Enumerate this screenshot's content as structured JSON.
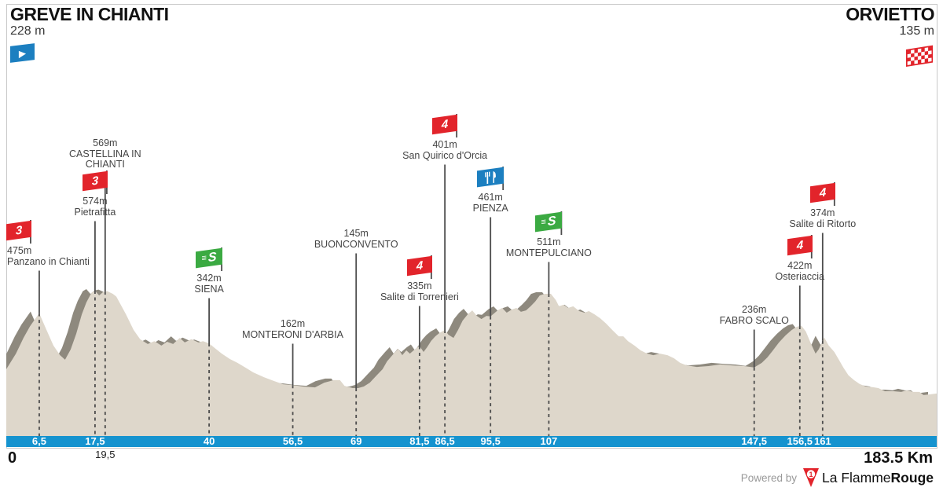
{
  "header": {
    "start_name": "GREVE IN CHIANTI",
    "start_elevation": "228 m",
    "finish_name": "ORVIETTO",
    "finish_elevation": "135 m"
  },
  "footer": {
    "km_zero_label": "0",
    "total_distance_label": "183.5 Km",
    "powered_by": "Powered by",
    "brand_regular": "La Flamme",
    "brand_bold": "Rouge"
  },
  "colors": {
    "profile_fill": "#ded7cb",
    "profile_shadow": "#8e897e",
    "axis_bar": "#1593cf",
    "flag_blue": "#1c7fc0",
    "flag_red": "#e2242b",
    "flag_green": "#3baa42",
    "marker_line": "#4d4d4d",
    "border": "#c9c9c9"
  },
  "chart_data": {
    "type": "area",
    "title": "Stage profile: Greve in Chianti to Orvieto",
    "x_unit": "km",
    "y_unit": "m",
    "x_range": [
      0,
      183.5
    ],
    "y_range": [
      100,
      600
    ],
    "start": {
      "name": "GREVE IN CHIANTI",
      "elevation_m": 228
    },
    "finish": {
      "name": "ORVIETTO",
      "elevation_m": 135
    },
    "profile": [
      [
        0,
        228
      ],
      [
        1.9,
        297
      ],
      [
        3.4,
        366
      ],
      [
        4.7,
        418
      ],
      [
        6.5,
        475
      ],
      [
        7.8,
        408
      ],
      [
        9.3,
        332
      ],
      [
        10.6,
        290
      ],
      [
        11.6,
        270
      ],
      [
        12.7,
        315
      ],
      [
        13.8,
        384
      ],
      [
        14.9,
        470
      ],
      [
        15.8,
        522
      ],
      [
        16.8,
        565
      ],
      [
        17.5,
        574
      ],
      [
        18.3,
        553
      ],
      [
        19.1,
        568
      ],
      [
        19.9,
        572
      ],
      [
        21,
        560
      ],
      [
        21.7,
        548
      ],
      [
        23.6,
        470
      ],
      [
        25.1,
        401
      ],
      [
        26.4,
        360
      ],
      [
        27.9,
        339
      ],
      [
        29.2,
        352
      ],
      [
        30.6,
        332
      ],
      [
        31.7,
        349
      ],
      [
        32.9,
        339
      ],
      [
        34.2,
        366
      ],
      [
        35.2,
        346
      ],
      [
        36.5,
        360
      ],
      [
        37.9,
        346
      ],
      [
        38.8,
        352
      ],
      [
        40,
        342
      ],
      [
        41.3,
        318
      ],
      [
        42.5,
        297
      ],
      [
        44.1,
        273
      ],
      [
        45.6,
        256
      ],
      [
        47.2,
        235
      ],
      [
        48.7,
        214
      ],
      [
        50.8,
        193
      ],
      [
        52.8,
        176
      ],
      [
        54.6,
        162
      ],
      [
        56.5,
        158
      ],
      [
        58.5,
        152
      ],
      [
        60.9,
        148
      ],
      [
        62.7,
        169
      ],
      [
        64.6,
        180
      ],
      [
        65.8,
        180
      ],
      [
        66.7,
        155
      ],
      [
        68.3,
        145
      ],
      [
        69.4,
        145
      ],
      [
        70.5,
        152
      ],
      [
        71.7,
        169
      ],
      [
        73,
        200
      ],
      [
        74.2,
        228
      ],
      [
        75.1,
        263
      ],
      [
        76.4,
        297
      ],
      [
        77.3,
        318
      ],
      [
        78.1,
        290
      ],
      [
        78.9,
        311
      ],
      [
        79.6,
        297
      ],
      [
        80.7,
        318
      ],
      [
        81.5,
        330
      ],
      [
        82.3,
        304
      ],
      [
        83,
        325
      ],
      [
        83.8,
        353
      ],
      [
        84.6,
        373
      ],
      [
        85.4,
        387
      ],
      [
        86.5,
        401
      ],
      [
        87.2,
        380
      ],
      [
        88.2,
        366
      ],
      [
        89.1,
        401
      ],
      [
        90,
        442
      ],
      [
        91,
        470
      ],
      [
        91.9,
        487
      ],
      [
        92.8,
        463
      ],
      [
        93.7,
        449
      ],
      [
        94.7,
        463
      ],
      [
        95.5,
        461
      ],
      [
        96.9,
        487
      ],
      [
        97.8,
        498
      ],
      [
        98.7,
        477
      ],
      [
        99.7,
        491
      ],
      [
        100.6,
        498
      ],
      [
        101.5,
        481
      ],
      [
        102.5,
        487
      ],
      [
        103.4,
        505
      ],
      [
        104.3,
        526
      ],
      [
        105.2,
        553
      ],
      [
        106.2,
        560
      ],
      [
        107.4,
        560
      ],
      [
        108.4,
        532
      ],
      [
        109,
        505
      ],
      [
        109.9,
        512
      ],
      [
        110.8,
        498
      ],
      [
        111.8,
        505
      ],
      [
        113,
        484
      ],
      [
        114,
        477
      ],
      [
        114.9,
        484
      ],
      [
        116,
        470
      ],
      [
        117.1,
        453
      ],
      [
        118.3,
        429
      ],
      [
        119.5,
        401
      ],
      [
        120.8,
        373
      ],
      [
        121.7,
        373
      ],
      [
        122.6,
        352
      ],
      [
        123.9,
        332
      ],
      [
        125.1,
        311
      ],
      [
        126.4,
        297
      ],
      [
        127.6,
        290
      ],
      [
        128.9,
        297
      ],
      [
        130.4,
        290
      ],
      [
        131.7,
        276
      ],
      [
        132.9,
        256
      ],
      [
        134.2,
        245
      ],
      [
        136.2,
        238
      ],
      [
        138.5,
        242
      ],
      [
        140.8,
        249
      ],
      [
        143.1,
        245
      ],
      [
        145.5,
        242
      ],
      [
        147.5,
        236
      ],
      [
        149,
        256
      ],
      [
        150.1,
        280
      ],
      [
        151.2,
        311
      ],
      [
        152.4,
        346
      ],
      [
        153.7,
        377
      ],
      [
        154.9,
        401
      ],
      [
        155.9,
        415
      ],
      [
        156.8,
        420
      ],
      [
        157.7,
        394
      ],
      [
        158.6,
        346
      ],
      [
        159.6,
        297
      ],
      [
        160.2,
        315
      ],
      [
        161.3,
        368
      ],
      [
        162.2,
        332
      ],
      [
        163.3,
        304
      ],
      [
        164.2,
        270
      ],
      [
        165.1,
        235
      ],
      [
        166.1,
        201
      ],
      [
        167.2,
        180
      ],
      [
        168.3,
        163
      ],
      [
        169.5,
        152
      ],
      [
        170.8,
        149
      ],
      [
        172,
        145
      ],
      [
        173.3,
        131
      ],
      [
        175,
        131
      ],
      [
        176.5,
        128
      ],
      [
        177.6,
        135
      ],
      [
        178.9,
        128
      ],
      [
        180.1,
        128
      ],
      [
        180.9,
        114
      ],
      [
        182,
        117
      ],
      [
        183.5,
        121
      ]
    ],
    "markers": [
      {
        "km": 6.5,
        "elevation_m": 475,
        "label": "475m",
        "name": [
          "Panzano in Chianti"
        ],
        "type": "cat3",
        "label_top": 283,
        "flag_dx": -26
      },
      {
        "km": 17.5,
        "elevation_m": 574,
        "label": "574m",
        "name": [
          "Pietrafitta"
        ],
        "type": "cat3",
        "label_top": 220,
        "flag_dx": 0
      },
      {
        "km": 19.5,
        "elevation_m": 569,
        "label": "569m",
        "name": [
          "CASTELLINA IN",
          "CHIANTI"
        ],
        "type": "town",
        "label_top": 176,
        "flag_dx": 0
      },
      {
        "km": 40,
        "elevation_m": 342,
        "label": "342m",
        "name": [
          "SIENA"
        ],
        "type": "sprint",
        "label_top": 318,
        "flag_dx": 0
      },
      {
        "km": 56.5,
        "elevation_m": 162,
        "label": "162m",
        "name": [
          "MONTERONI D'ARBIA"
        ],
        "type": "town",
        "label_top": 406,
        "flag_dx": 0
      },
      {
        "km": 69,
        "elevation_m": 145,
        "label": "145m",
        "name": [
          "BUONCONVENTO"
        ],
        "type": "town",
        "label_top": 291,
        "flag_dx": 0
      },
      {
        "km": 81.5,
        "elevation_m": 335,
        "label": "335m",
        "name": [
          "Salite di Torrenieri"
        ],
        "type": "cat4",
        "label_top": 328,
        "flag_dx": 0
      },
      {
        "km": 86.5,
        "elevation_m": 401,
        "label": "401m",
        "name": [
          "San Quirico d'Orcia"
        ],
        "type": "cat4",
        "label_top": 148,
        "flag_dx": 0
      },
      {
        "km": 95.5,
        "elevation_m": 461,
        "label": "461m",
        "name": [
          "PIENZA"
        ],
        "type": "feed",
        "label_top": 215,
        "flag_dx": 0
      },
      {
        "km": 107,
        "elevation_m": 511,
        "label": "511m",
        "name": [
          "MONTEPULCIANO"
        ],
        "type": "sprint",
        "label_top": 272,
        "flag_dx": 0
      },
      {
        "km": 147.5,
        "elevation_m": 236,
        "label": "236m",
        "name": [
          "FABRO SCALO"
        ],
        "type": "town",
        "label_top": 388,
        "flag_dx": 0
      },
      {
        "km": 156.5,
        "elevation_m": 422,
        "label": "422m",
        "name": [
          "Osteriaccia"
        ],
        "type": "cat4",
        "label_top": 302,
        "flag_dx": 0
      },
      {
        "km": 161,
        "elevation_m": 374,
        "label": "374m",
        "name": [
          "Salite di Ritorto"
        ],
        "type": "cat4",
        "label_top": 235,
        "flag_dx": 0
      }
    ],
    "axis_ticks": [
      {
        "km": 6.5,
        "label": "6,5",
        "below": false
      },
      {
        "km": 17.5,
        "label": "17,5",
        "below": false
      },
      {
        "km": 19.5,
        "label": "19,5",
        "below": true
      },
      {
        "km": 40,
        "label": "40",
        "below": false
      },
      {
        "km": 56.5,
        "label": "56,5",
        "below": false
      },
      {
        "km": 69,
        "label": "69",
        "below": false
      },
      {
        "km": 81.5,
        "label": "81,5",
        "below": false
      },
      {
        "km": 86.5,
        "label": "86,5",
        "below": false
      },
      {
        "km": 95.5,
        "label": "95,5",
        "below": false
      },
      {
        "km": 107,
        "label": "107",
        "below": false
      },
      {
        "km": 147.5,
        "label": "147,5",
        "below": false
      },
      {
        "km": 156.5,
        "label": "156,5",
        "below": false
      },
      {
        "km": 161,
        "label": "161",
        "below": false
      }
    ],
    "flag_glyphs": {
      "cat3": "3",
      "cat4": "4",
      "sprint": "S"
    },
    "legend_position": "none",
    "grid": false
  }
}
